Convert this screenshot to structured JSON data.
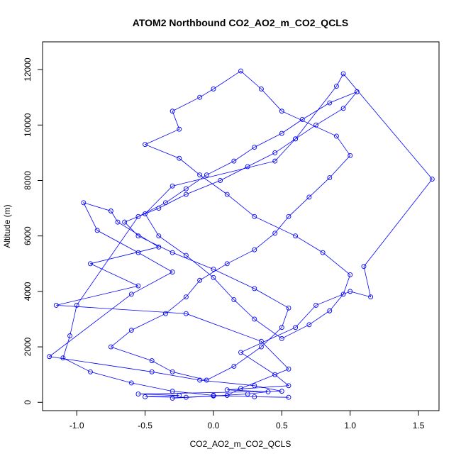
{
  "chart_data": {
    "type": "scatter",
    "title": "ATOM2 Northbound CO2_AO2_m_CO2_QCLS",
    "xlabel": "CO2_AO2_m_CO2_QCLS",
    "ylabel": "Altitude (m)",
    "xlim": [
      -1.25,
      1.65
    ],
    "ylim": [
      -300,
      13000
    ],
    "x_ticks": [
      -1.0,
      -0.5,
      0.0,
      0.5,
      1.0,
      1.5
    ],
    "x_tick_labels": [
      "-1.0",
      "-0.5",
      "0.0",
      "0.5",
      "1.0",
      "1.5"
    ],
    "y_ticks": [
      0,
      2000,
      4000,
      6000,
      8000,
      10000,
      12000
    ],
    "y_tick_labels": [
      "0",
      "2000",
      "4000",
      "6000",
      "8000",
      "10000",
      "12000"
    ],
    "grid": false,
    "legend": "none",
    "point_style": "open-circle",
    "connected": true,
    "color": "#0000ff",
    "x": [
      -0.3,
      0.1,
      0.2,
      0.55,
      0.35,
      -0.2,
      -1.15,
      -0.55,
      -0.9,
      -0.4,
      -0.7,
      -0.75,
      -0.95,
      -0.85,
      -0.55,
      -0.3,
      -0.6,
      -1.2,
      -0.45,
      -0.1,
      0.3,
      0.5,
      -0.55,
      -0.25,
      -0.5,
      -0.2,
      0.0,
      0.25,
      0.4,
      0.1,
      0.55,
      0.45,
      0.2,
      0.6,
      0.75,
      1.0,
      1.15,
      1.1,
      1.6,
      0.95,
      0.9,
      0.6,
      0.45,
      -0.3,
      -0.5,
      -0.4,
      -0.2,
      0.0,
      0.15,
      0.3,
      0.5,
      0.7,
      0.85,
      0.95,
      1.0,
      0.8,
      0.6,
      0.3,
      0.1,
      -0.1,
      -0.25,
      -0.5,
      -0.25,
      -0.3,
      -0.1,
      0.0,
      0.2,
      0.35,
      0.5,
      0.9,
      1.0,
      0.85,
      0.7,
      0.55,
      0.45,
      0.3,
      0.1,
      -0.1,
      -0.2,
      -0.35,
      -0.6,
      -0.75,
      -0.45,
      -0.3,
      -0.05,
      0.15,
      0.35,
      0.5,
      0.55,
      0.3,
      0.0,
      -0.3,
      -0.55,
      -0.65,
      -0.4,
      -0.2,
      0.05,
      0.25,
      0.45,
      0.6,
      0.75,
      0.95,
      1.05,
      0.85,
      0.65,
      0.5,
      0.3,
      0.15,
      -0.05,
      -0.2,
      -0.35,
      -0.55,
      -1.0,
      -1.05,
      -1.1,
      -0.9,
      -0.6,
      -0.3,
      0.0,
      0.3,
      0.55
    ],
    "y": [
      150,
      250,
      500,
      1200,
      2200,
      3200,
      3500,
      4200,
      5000,
      5600,
      6500,
      6900,
      7200,
      6200,
      5400,
      4700,
      3900,
      1650,
      1100,
      800,
      600,
      400,
      300,
      250,
      200,
      180,
      230,
      300,
      380,
      450,
      600,
      1000,
      1800,
      2700,
      3500,
      4000,
      3800,
      4900,
      8050,
      11850,
      11400,
      9500,
      8700,
      7800,
      6800,
      6000,
      5300,
      4500,
      3700,
      3000,
      2300,
      2800,
      3300,
      3900,
      4600,
      5400,
      6000,
      6700,
      7500,
      8200,
      8800,
      9300,
      9850,
      10500,
      11000,
      11300,
      11950,
      11300,
      10500,
      9600,
      8900,
      8100,
      7400,
      6700,
      6100,
      5500,
      5000,
      4400,
      3800,
      3200,
      2600,
      2000,
      1500,
      1100,
      800,
      1300,
      2000,
      2700,
      3400,
      4100,
      4800,
      5400,
      6000,
      6500,
      7000,
      7500,
      8000,
      8500,
      9000,
      9500,
      10000,
      10600,
      11200,
      10800,
      10200,
      9700,
      9200,
      8700,
      8200,
      7700,
      7200,
      6700,
      3500,
      2400,
      1600,
      1100,
      700,
      400,
      250,
      200,
      180
    ]
  }
}
